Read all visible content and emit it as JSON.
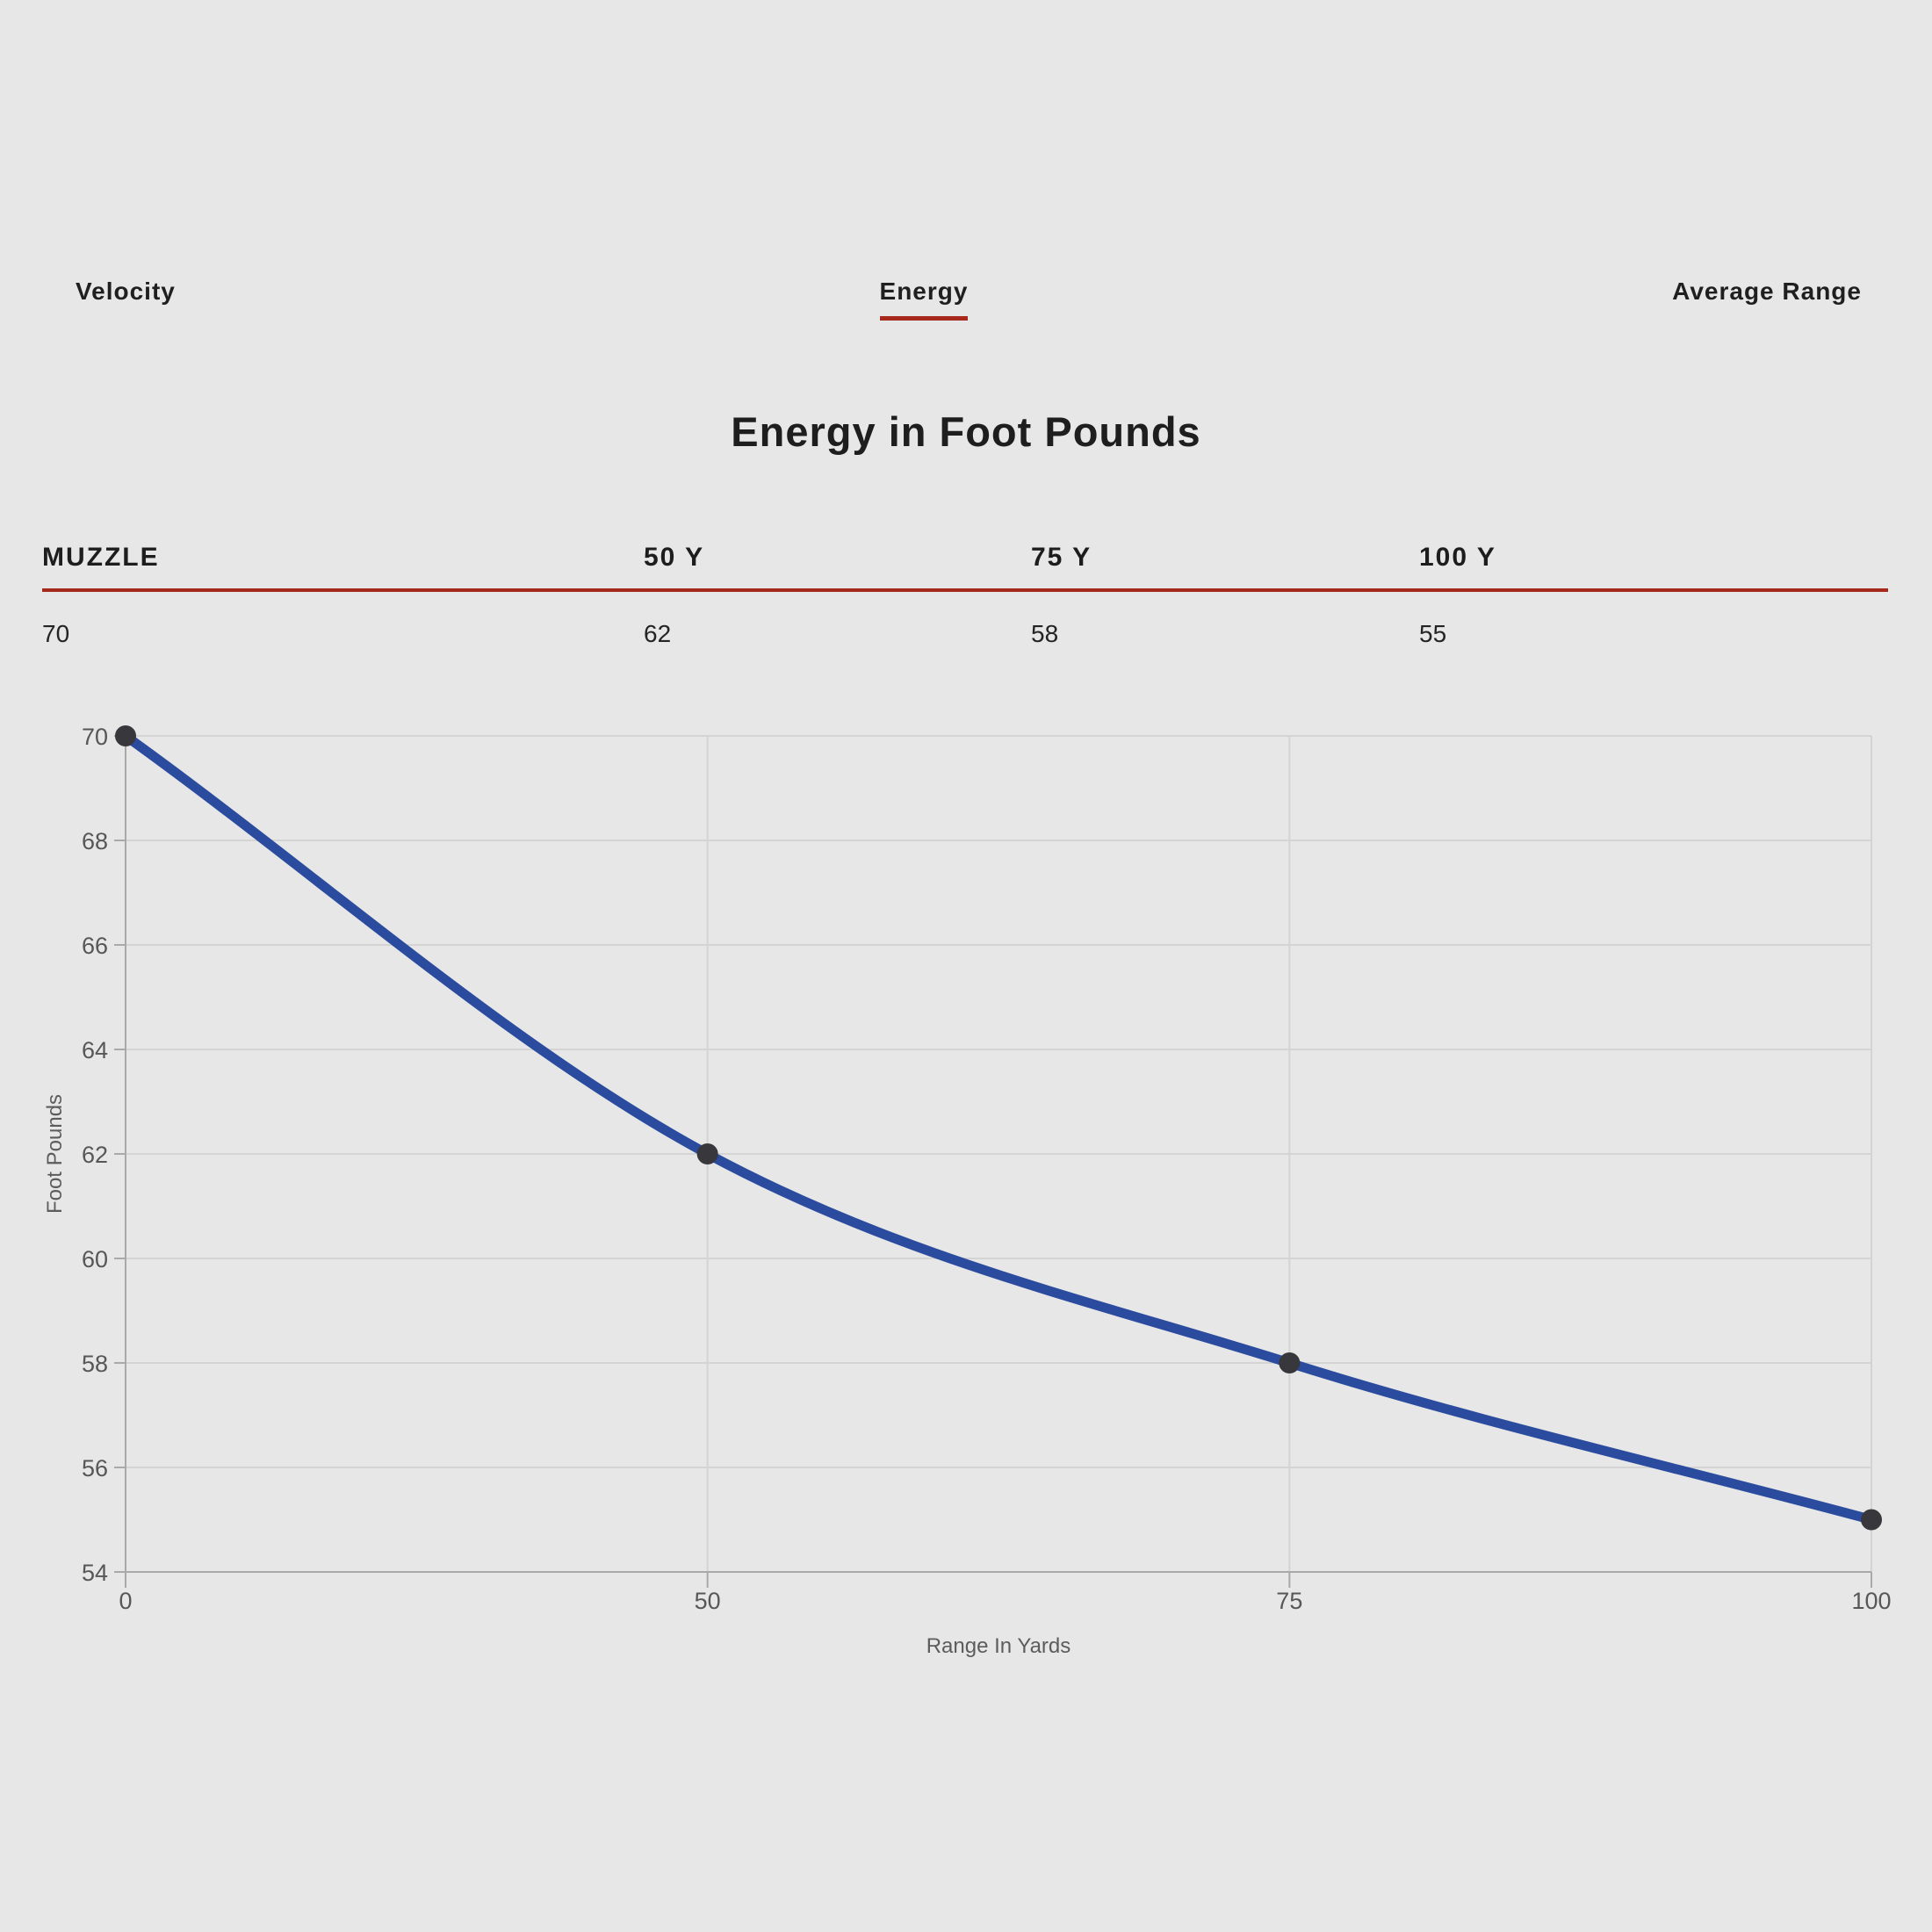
{
  "tabs": [
    {
      "label": "Velocity",
      "active": false
    },
    {
      "label": "Energy",
      "active": true
    },
    {
      "label": "Average Range",
      "active": false
    }
  ],
  "title": "Energy in Foot Pounds",
  "table": {
    "headers": [
      "MUZZLE",
      "50 Y",
      "75 Y",
      "100 Y"
    ],
    "values": [
      "70",
      "62",
      "58",
      "55"
    ]
  },
  "chart_data": {
    "type": "line",
    "categories": [
      "0",
      "50",
      "75",
      "100"
    ],
    "series": [
      {
        "name": "Energy",
        "values": [
          70,
          62,
          58,
          55
        ]
      }
    ],
    "title": "",
    "xlabel": "Range In Yards",
    "ylabel": "Foot Pounds",
    "ylim": [
      54,
      70
    ],
    "ytick_step": 2,
    "x_spacing": "equal",
    "grid": true,
    "legend": "none"
  },
  "colors": {
    "accent_red": "#a6291c",
    "line_blue": "#2a4b9e",
    "point_dark": "#37373c"
  }
}
